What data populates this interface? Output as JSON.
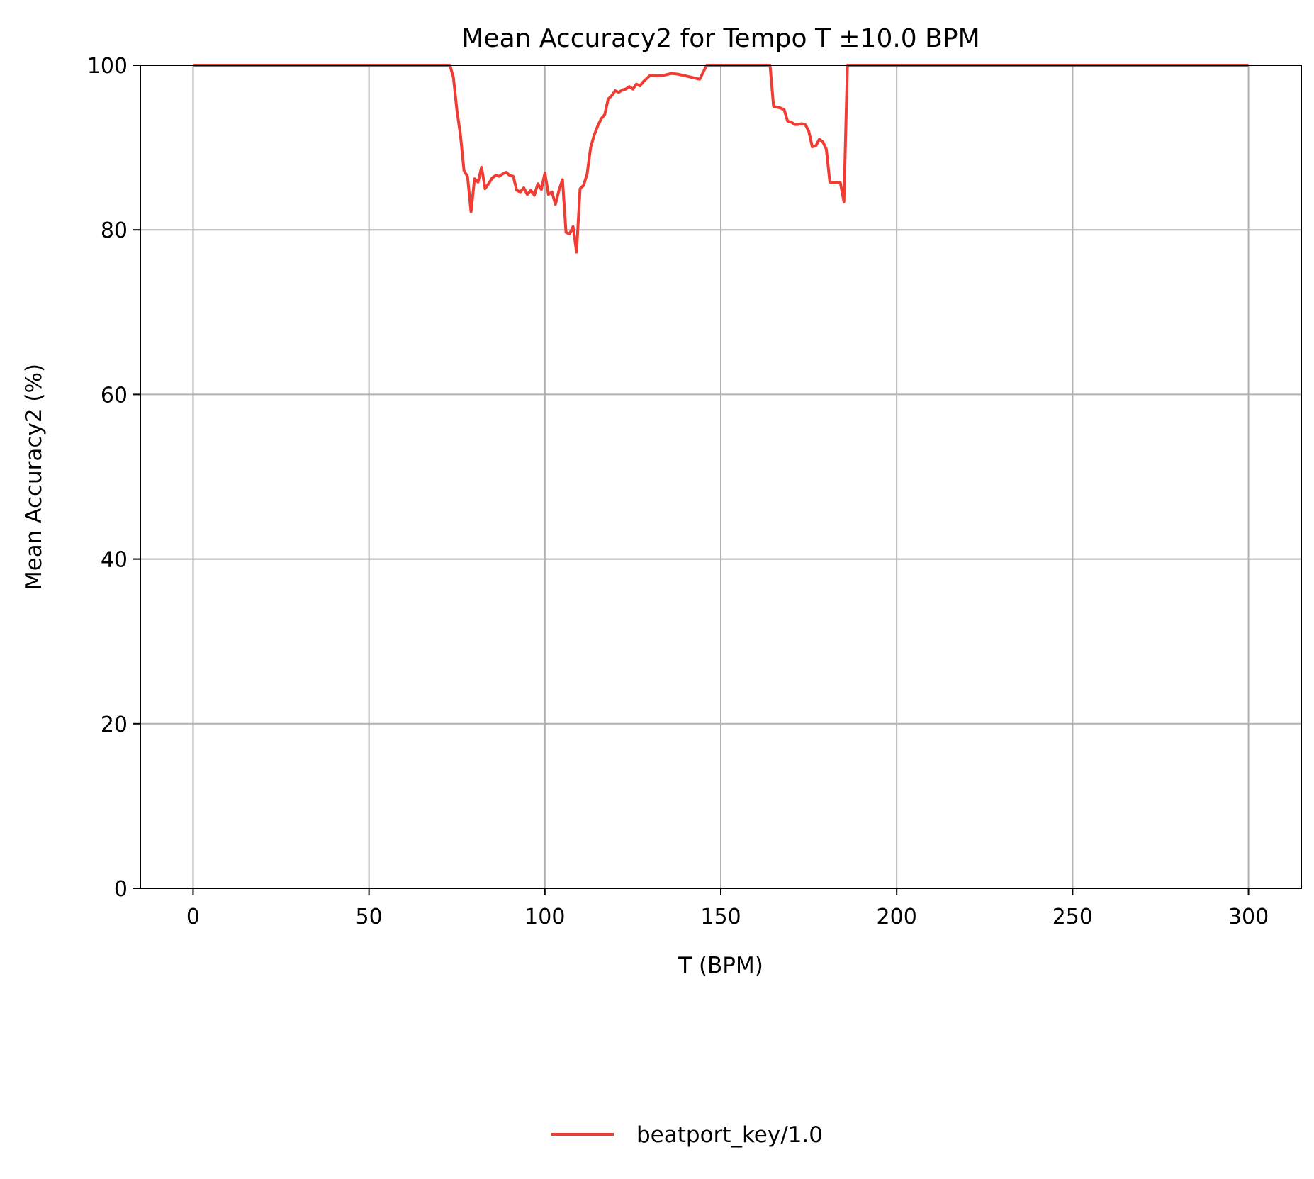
{
  "chart_data": {
    "type": "line",
    "title": "Mean Accuracy2 for Tempo T ±10.0 BPM",
    "xlabel": "T (BPM)",
    "ylabel": "Mean Accuracy2 (%)",
    "xlim": [
      -15,
      315
    ],
    "ylim": [
      0,
      100
    ],
    "xticks": [
      0,
      50,
      100,
      150,
      200,
      250,
      300
    ],
    "yticks": [
      0,
      20,
      40,
      60,
      80,
      100
    ],
    "grid": true,
    "legend_position": "bottom-center",
    "colors": {
      "series": "#f03c32",
      "grid": "#b0b0b0",
      "axes": "#000000"
    },
    "series": [
      {
        "name": "beatport_key/1.0",
        "x": [
          0,
          73,
          74,
          75,
          76,
          77,
          78,
          79,
          80,
          81,
          82,
          83,
          84,
          85,
          86,
          87,
          88,
          89,
          90,
          91,
          92,
          93,
          94,
          95,
          96,
          97,
          98,
          99,
          100,
          101,
          102,
          103,
          104,
          105,
          106,
          107,
          108,
          109,
          110,
          111,
          112,
          113,
          114,
          115,
          116,
          117,
          118,
          119,
          120,
          121,
          122,
          123,
          124,
          125,
          126,
          127,
          128,
          129,
          130,
          132,
          134,
          136,
          138,
          140,
          142,
          144,
          146,
          147,
          148,
          150,
          160,
          164,
          165,
          166,
          167,
          168,
          169,
          170,
          171,
          172,
          173,
          174,
          175,
          176,
          177,
          178,
          179,
          180,
          181,
          182,
          183,
          184,
          185,
          186,
          190,
          300
        ],
        "values": [
          100,
          100,
          98.5,
          94.5,
          91.5,
          87.2,
          86.5,
          82.2,
          86.2,
          85.8,
          87.6,
          85,
          85.6,
          86.3,
          86.6,
          86.5,
          86.8,
          87,
          86.6,
          86.5,
          84.8,
          84.6,
          85.1,
          84.3,
          84.8,
          84.2,
          85.6,
          84.9,
          86.9,
          84.3,
          84.6,
          83.1,
          84.8,
          86.1,
          79.7,
          79.5,
          80.4,
          77.3,
          85,
          85.4,
          86.8,
          90,
          91.5,
          92.6,
          93.5,
          94,
          95.9,
          96.3,
          96.9,
          96.7,
          97,
          97.1,
          97.4,
          97.1,
          97.7,
          97.5,
          98,
          98.4,
          98.8,
          98.7,
          98.8,
          99,
          98.9,
          98.7,
          98.5,
          98.3,
          100,
          100,
          100,
          100,
          100,
          100,
          95,
          94.9,
          94.8,
          94.6,
          93.2,
          93.1,
          92.8,
          92.8,
          92.9,
          92.8,
          92,
          90.1,
          90.2,
          91,
          90.7,
          89.8,
          85.8,
          85.7,
          85.8,
          85.7,
          83.4,
          100,
          100,
          100
        ]
      }
    ]
  }
}
